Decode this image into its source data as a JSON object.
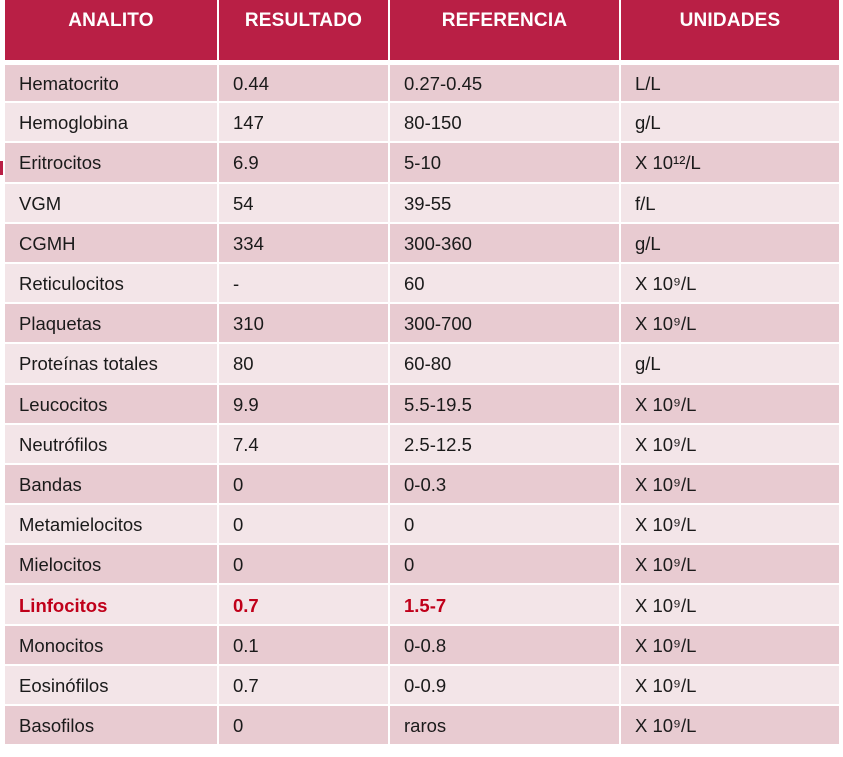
{
  "headers": [
    "ANALITO",
    "RESULTADO",
    "REFERENCIA",
    "UNIDADES"
  ],
  "rows": [
    {
      "analito": "Hematocrito",
      "resultado": "0.44",
      "referencia": "0.27-0.45",
      "unidades": "L/L",
      "flag": false
    },
    {
      "analito": "Hemoglobina",
      "resultado": "147",
      "referencia": "80-150",
      "unidades": "g/L",
      "flag": false
    },
    {
      "analito": "Eritrocitos",
      "resultado": "6.9",
      "referencia": "5-10",
      "unidades": "X 10¹²/L",
      "flag": false
    },
    {
      "analito": "VGM",
      "resultado": "54",
      "referencia": "39-55",
      "unidades": "f/L",
      "flag": false
    },
    {
      "analito": "CGMH",
      "resultado": "334",
      "referencia": "300-360",
      "unidades": "g/L",
      "flag": false
    },
    {
      "analito": "Reticulocitos",
      "resultado": "-",
      "referencia": "60",
      "unidades": "X 10⁹/L",
      "flag": false
    },
    {
      "analito": "Plaquetas",
      "resultado": "310",
      "referencia": "300-700",
      "unidades": "X 10⁹/L",
      "flag": false
    },
    {
      "analito": "Proteínas totales",
      "resultado": "80",
      "referencia": "60-80",
      "unidades": "g/L",
      "flag": false
    },
    {
      "analito": "Leucocitos",
      "resultado": "9.9",
      "referencia": "5.5-19.5",
      "unidades": "X 10⁹/L",
      "flag": false
    },
    {
      "analito": "Neutrófilos",
      "resultado": "7.4",
      "referencia": "2.5-12.5",
      "unidades": "X 10⁹/L",
      "flag": false
    },
    {
      "analito": "Bandas",
      "resultado": "0",
      "referencia": "0-0.3",
      "unidades": "X 10⁹/L",
      "flag": false
    },
    {
      "analito": "Metamielocitos",
      "resultado": "0",
      "referencia": "0",
      "unidades": "X 10⁹/L",
      "flag": false
    },
    {
      "analito": "Mielocitos",
      "resultado": "0",
      "referencia": "0",
      "unidades": "X 10⁹/L",
      "flag": false
    },
    {
      "analito": "Linfocitos",
      "resultado": "0.7",
      "referencia": "1.5-7",
      "unidades": "X 10⁹/L",
      "flag": true
    },
    {
      "analito": "Monocitos",
      "resultado": "0.1",
      "referencia": "0-0.8",
      "unidades": "X 10⁹/L",
      "flag": false
    },
    {
      "analito": "Eosinófilos",
      "resultado": "0.7",
      "referencia": "0-0.9",
      "unidades": "X 10⁹/L",
      "flag": false
    },
    {
      "analito": "Basofilos",
      "resultado": "0",
      "referencia": "raros",
      "unidades": "X 10⁹/L",
      "flag": false
    }
  ],
  "colors": {
    "header_bg": "#b91f45",
    "row_dark": "#e8cbd1",
    "row_light": "#f3e5e8",
    "flag_text": "#c0001a"
  }
}
